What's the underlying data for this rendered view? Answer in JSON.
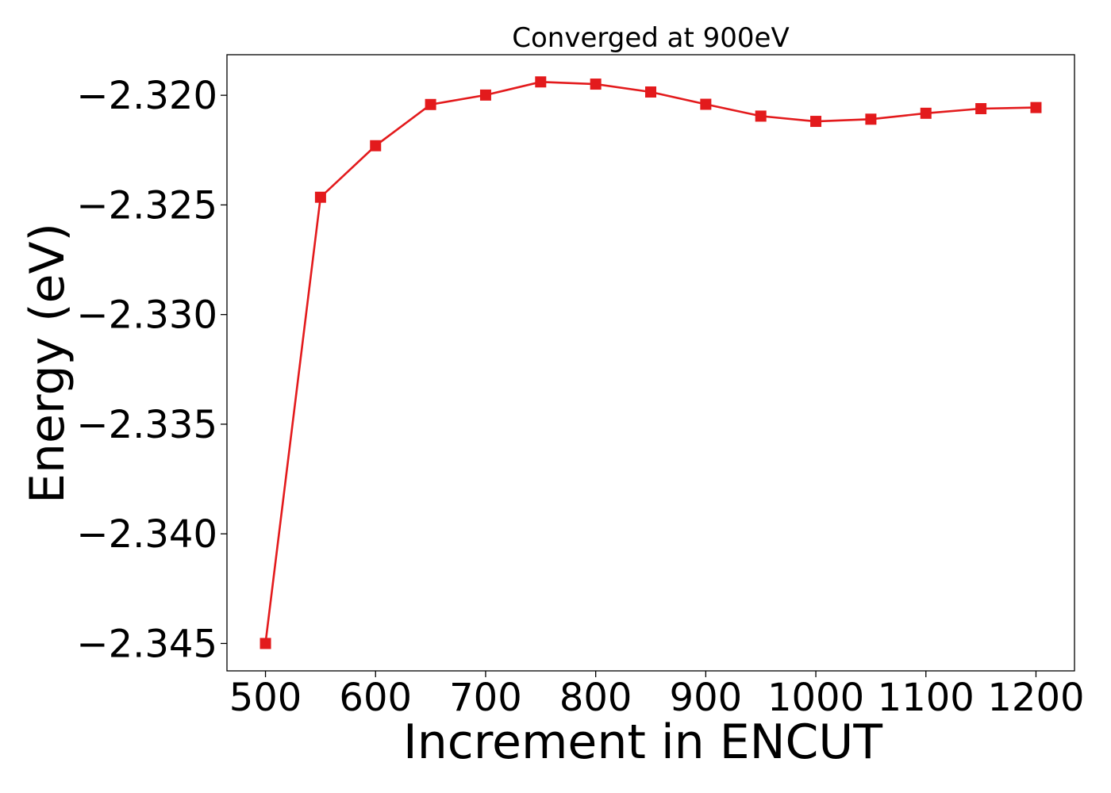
{
  "chart_data": {
    "type": "line",
    "title": "Converged at 900eV",
    "xlabel": "Increment in ENCUT",
    "ylabel": "Energy (eV)",
    "x": [
      500,
      550,
      600,
      650,
      700,
      750,
      800,
      850,
      900,
      950,
      1000,
      1050,
      1100,
      1150,
      1200
    ],
    "series": [
      {
        "values": [
          -2.345,
          -2.32465,
          -2.3223,
          -2.32042,
          -2.31999,
          -2.31939,
          -2.31949,
          -2.31985,
          -2.32041,
          -2.32095,
          -2.32119,
          -2.32109,
          -2.32082,
          -2.32061,
          -2.32056
        ],
        "color": "#e31a1c",
        "marker": "square"
      }
    ],
    "xlim": [
      465,
      1235
    ],
    "ylim": [
      -2.34625,
      -2.31815
    ],
    "xticks": [
      500,
      600,
      700,
      800,
      900,
      1000,
      1100,
      1200
    ],
    "xtick_labels": [
      "500",
      "600",
      "700",
      "800",
      "900",
      "1000",
      "1100",
      "1200"
    ],
    "yticks": [
      -2.345,
      -2.34,
      -2.335,
      -2.33,
      -2.325,
      -2.32
    ],
    "ytick_labels": [
      "−2.345",
      "−2.340",
      "−2.335",
      "−2.330",
      "−2.325",
      "−2.320"
    ],
    "grid": false,
    "legend": "none"
  }
}
